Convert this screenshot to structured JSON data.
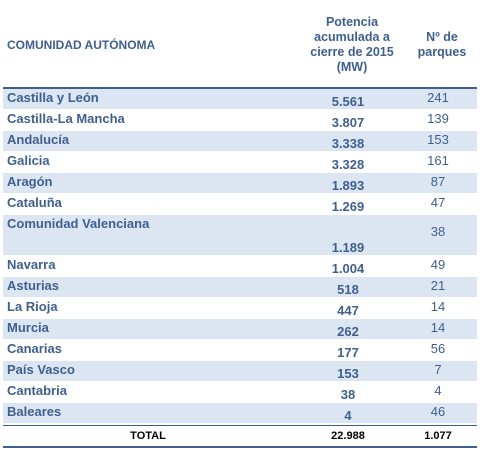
{
  "header": {
    "col1": "COMUNIDAD AUTÓNOMA",
    "col2": "Potencia acumulada a cierre de 2015 (MW)",
    "col3": "Nº de parques"
  },
  "rows": [
    {
      "name": "Castilla y León",
      "mw": "5.561",
      "parks": "241"
    },
    {
      "name": "Castilla-La Mancha",
      "mw": "3.807",
      "parks": "139"
    },
    {
      "name": "Andalucía",
      "mw": "3.338",
      "parks": "153"
    },
    {
      "name": "Galicia",
      "mw": "3.328",
      "parks": "161"
    },
    {
      "name": "Aragón",
      "mw": "1.893",
      "parks": "87"
    },
    {
      "name": "Cataluña",
      "mw": "1.269",
      "parks": "47"
    },
    {
      "name": "Comunidad Valenciana",
      "mw": "1.189",
      "parks": "38"
    },
    {
      "name": "Navarra",
      "mw": "1.004",
      "parks": "49"
    },
    {
      "name": "Asturias",
      "mw": "518",
      "parks": "21"
    },
    {
      "name": "La Rioja",
      "mw": "447",
      "parks": "14"
    },
    {
      "name": "Murcia",
      "mw": "262",
      "parks": "14"
    },
    {
      "name": "Canarias",
      "mw": "177",
      "parks": "56"
    },
    {
      "name": "País Vasco",
      "mw": "153",
      "parks": "7"
    },
    {
      "name": "Cantabria",
      "mw": "38",
      "parks": "4"
    },
    {
      "name": "Baleares",
      "mw": "4",
      "parks": "46"
    }
  ],
  "total": {
    "label": "TOTAL",
    "mw": "22.988",
    "parks": "1.077"
  },
  "colors": {
    "text": "#3f5f8f",
    "shade": "#dce6f2"
  }
}
